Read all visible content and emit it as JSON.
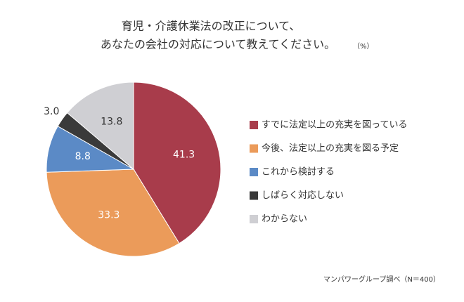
{
  "chart_data": {
    "type": "pie",
    "title_lines": [
      "育児・介護休業法の改正について、",
      "あなたの会社の対応について教えてください。"
    ],
    "unit": "（%）",
    "categories": [
      "すでに法定以上の充実を図っている",
      "今後、法定以上の充実を図る予定",
      "これから検討する",
      "しばらく対応しない",
      "わからない"
    ],
    "values": [
      41.3,
      33.3,
      8.8,
      3.0,
      13.8
    ],
    "value_labels": [
      "41.3",
      "33.3",
      "8.8",
      "3.0",
      "13.8"
    ],
    "colors": [
      "#a83c4b",
      "#eb9b5a",
      "#5b8ac6",
      "#3a3a3a",
      "#cfcfd3"
    ],
    "source": "マンパワーグループ調べ（N＝400）"
  }
}
